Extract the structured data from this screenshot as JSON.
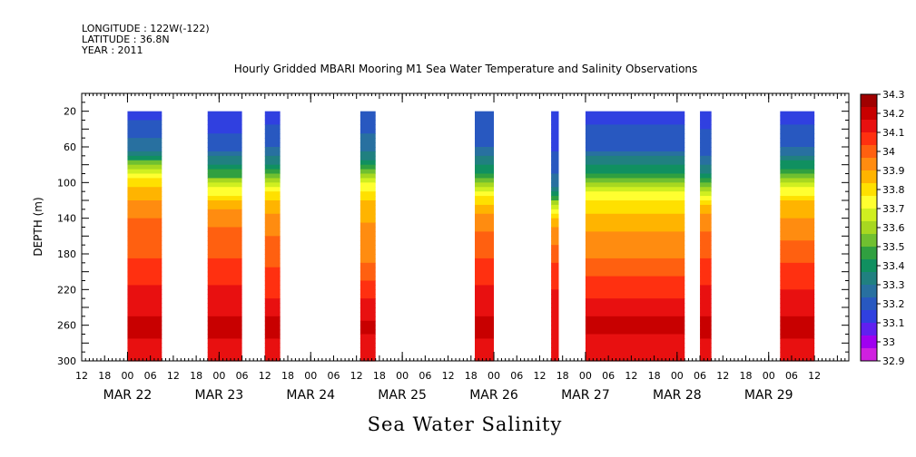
{
  "header": {
    "longitude": "LONGITUDE : 122W(-122)",
    "latitude": "LATITUDE : 36.8N",
    "year": "YEAR : 2011"
  },
  "chart_data": {
    "type": "heatmap",
    "title": "Hourly Gridded MBARI Mooring M1 Sea Water Temperature and Salinity Observations",
    "xlabel": "Sea Water Salinity",
    "ylabel": "DEPTH (m)",
    "x_range_hours_from_mar22_00": [
      -12,
      189
    ],
    "ylim": [
      300,
      0
    ],
    "y_ticks": [
      20,
      60,
      100,
      140,
      180,
      220,
      260,
      300
    ],
    "x_tick_hour_labels": [
      "12",
      "18",
      "00",
      "06",
      "12",
      "18",
      "00",
      "06",
      "12",
      "18",
      "00",
      "06",
      "12",
      "18",
      "00",
      "06",
      "12",
      "18",
      "00",
      "06",
      "12",
      "18",
      "00",
      "06",
      "12",
      "18",
      "00",
      "06",
      "12",
      "18",
      "00",
      "06",
      "12"
    ],
    "date_labels": [
      "MAR 22",
      "MAR 23",
      "MAR 24",
      "MAR 25",
      "MAR 26",
      "MAR 27",
      "MAR 28",
      "MAR 29"
    ],
    "depth_profile": [
      20,
      60,
      80,
      100,
      120,
      140,
      180,
      220,
      260,
      300
    ],
    "data_blocks": [
      {
        "start": 0,
        "end": 9,
        "salinity": [
          33.2,
          33.4,
          33.8,
          33.95,
          34.02,
          34.08,
          34.12,
          34.18,
          34.24,
          34.2
        ]
      },
      {
        "start": 21,
        "end": 30,
        "salinity": [
          33.15,
          33.3,
          33.55,
          33.82,
          33.97,
          34.06,
          34.12,
          34.18,
          34.24,
          34.2
        ]
      },
      {
        "start": 36,
        "end": 40,
        "salinity": [
          33.2,
          33.35,
          33.55,
          33.85,
          33.98,
          34.05,
          34.1,
          34.16,
          34.24,
          34.2
        ]
      },
      {
        "start": 61,
        "end": 65,
        "salinity": [
          33.3,
          33.38,
          33.65,
          33.88,
          33.98,
          34.02,
          34.05,
          34.15,
          34.24,
          34.18
        ]
      },
      {
        "start": 91,
        "end": 96,
        "salinity": [
          33.3,
          33.35,
          33.55,
          33.8,
          33.95,
          34.05,
          34.12,
          34.18,
          34.24,
          34.2
        ]
      },
      {
        "start": 111,
        "end": 113,
        "salinity": [
          33.2,
          33.22,
          33.3,
          33.4,
          33.75,
          34.0,
          34.1,
          34.18,
          34.22,
          34.2
        ]
      },
      {
        "start": 120,
        "end": 146,
        "salinity": [
          33.22,
          33.3,
          33.55,
          33.8,
          33.92,
          34.0,
          34.06,
          34.16,
          34.24,
          34.18
        ]
      },
      {
        "start": 150,
        "end": 153,
        "salinity": [
          33.22,
          33.28,
          33.45,
          33.7,
          33.95,
          34.05,
          34.12,
          34.18,
          34.24,
          34.2
        ]
      },
      {
        "start": 171,
        "end": 180,
        "salinity": [
          33.2,
          33.35,
          33.6,
          33.85,
          33.97,
          34.03,
          34.1,
          34.18,
          34.24,
          34.2
        ]
      }
    ],
    "colorbar": {
      "levels": [
        "34.3",
        "34.2",
        "34.1",
        "34",
        "33.9",
        "33.8",
        "33.7",
        "33.6",
        "33.5",
        "33.4",
        "33.3",
        "33.2",
        "33.1",
        "33",
        "32.9"
      ],
      "colors": [
        "#a00000",
        "#c80000",
        "#e81010",
        "#ff3010",
        "#ff6010",
        "#ff8c10",
        "#ffb400",
        "#ffe000",
        "#ffff30",
        "#d0ef20",
        "#a8d820",
        "#70c030",
        "#30a040",
        "#109060",
        "#208080",
        "#2870a0",
        "#2858c0",
        "#3040e0",
        "#6020f0",
        "#a000f0",
        "#d020e0"
      ],
      "band_values": [
        34.3,
        34.25,
        34.2,
        34.15,
        34.1,
        34.05,
        34.0,
        33.95,
        33.9,
        33.85,
        33.8,
        33.75,
        33.7,
        33.6,
        33.5,
        33.4,
        33.3,
        33.2,
        33.1,
        33.0,
        32.9
      ]
    }
  }
}
